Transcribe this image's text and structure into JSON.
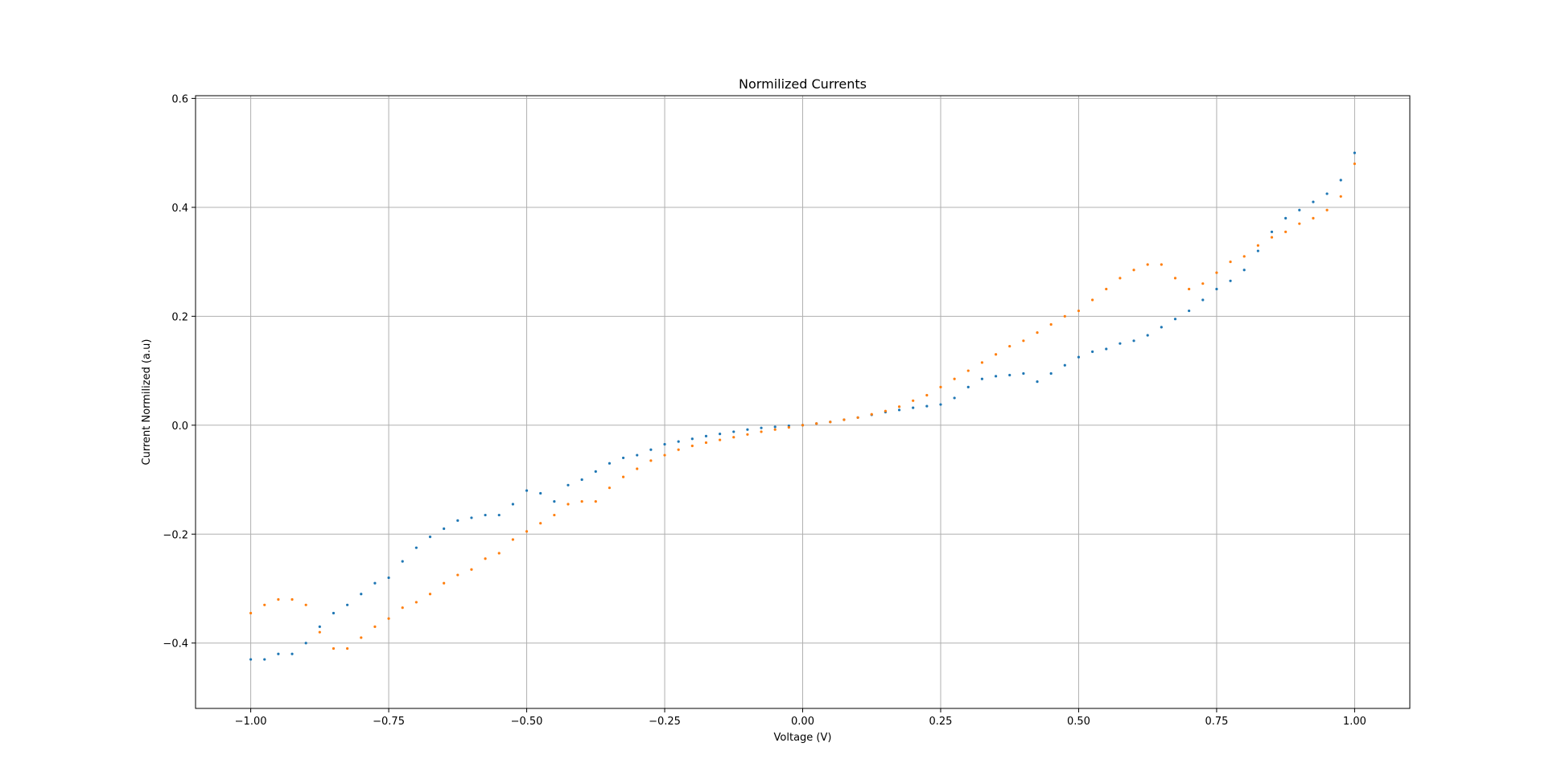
{
  "chart_data": {
    "type": "scatter",
    "title": "Normilized Currents",
    "xlabel": "Voltage (V)",
    "ylabel": "Current Normilized (a.u)",
    "xlim": [
      -1.1,
      1.1
    ],
    "ylim": [
      -0.52,
      0.605
    ],
    "grid": true,
    "x_ticks": [
      -1.0,
      -0.75,
      -0.5,
      -0.25,
      0.0,
      0.25,
      0.5,
      0.75,
      1.0
    ],
    "x_tick_labels": [
      "−1.00",
      "−0.75",
      "−0.50",
      "−0.25",
      "0.00",
      "0.25",
      "0.50",
      "0.75",
      "1.00"
    ],
    "y_ticks": [
      -0.4,
      -0.2,
      0.0,
      0.2,
      0.4,
      0.6
    ],
    "y_tick_labels": [
      "−0.4",
      "−0.2",
      "0.0",
      "0.2",
      "0.4",
      "0.6"
    ],
    "series": [
      {
        "color": "#1f77b4",
        "points": [
          [
            -1.0,
            -0.43
          ],
          [
            -0.975,
            -0.43
          ],
          [
            -0.95,
            -0.42
          ],
          [
            -0.925,
            -0.42
          ],
          [
            -0.9,
            -0.4
          ],
          [
            -0.875,
            -0.37
          ],
          [
            -0.85,
            -0.345
          ],
          [
            -0.825,
            -0.33
          ],
          [
            -0.8,
            -0.31
          ],
          [
            -0.775,
            -0.29
          ],
          [
            -0.75,
            -0.28
          ],
          [
            -0.725,
            -0.25
          ],
          [
            -0.7,
            -0.225
          ],
          [
            -0.675,
            -0.205
          ],
          [
            -0.65,
            -0.19
          ],
          [
            -0.625,
            -0.175
          ],
          [
            -0.6,
            -0.17
          ],
          [
            -0.575,
            -0.165
          ],
          [
            -0.55,
            -0.165
          ],
          [
            -0.525,
            -0.145
          ],
          [
            -0.5,
            -0.12
          ],
          [
            -0.475,
            -0.125
          ],
          [
            -0.45,
            -0.14
          ],
          [
            -0.425,
            -0.11
          ],
          [
            -0.4,
            -0.1
          ],
          [
            -0.375,
            -0.085
          ],
          [
            -0.35,
            -0.07
          ],
          [
            -0.325,
            -0.06
          ],
          [
            -0.3,
            -0.055
          ],
          [
            -0.275,
            -0.045
          ],
          [
            -0.25,
            -0.035
          ],
          [
            -0.225,
            -0.03
          ],
          [
            -0.2,
            -0.025
          ],
          [
            -0.175,
            -0.02
          ],
          [
            -0.15,
            -0.016
          ],
          [
            -0.125,
            -0.012
          ],
          [
            -0.1,
            -0.008
          ],
          [
            -0.075,
            -0.005
          ],
          [
            -0.05,
            -0.003
          ],
          [
            -0.025,
            -0.001
          ],
          [
            0.0,
            0.0
          ],
          [
            0.025,
            0.003
          ],
          [
            0.05,
            0.006
          ],
          [
            0.075,
            0.01
          ],
          [
            0.1,
            0.014
          ],
          [
            0.125,
            0.019
          ],
          [
            0.15,
            0.024
          ],
          [
            0.175,
            0.028
          ],
          [
            0.2,
            0.032
          ],
          [
            0.225,
            0.035
          ],
          [
            0.25,
            0.038
          ],
          [
            0.275,
            0.05
          ],
          [
            0.3,
            0.07
          ],
          [
            0.325,
            0.085
          ],
          [
            0.35,
            0.09
          ],
          [
            0.375,
            0.092
          ],
          [
            0.4,
            0.095
          ],
          [
            0.425,
            0.08
          ],
          [
            0.45,
            0.095
          ],
          [
            0.475,
            0.11
          ],
          [
            0.5,
            0.125
          ],
          [
            0.525,
            0.135
          ],
          [
            0.55,
            0.14
          ],
          [
            0.575,
            0.15
          ],
          [
            0.6,
            0.155
          ],
          [
            0.625,
            0.165
          ],
          [
            0.65,
            0.18
          ],
          [
            0.675,
            0.195
          ],
          [
            0.7,
            0.21
          ],
          [
            0.725,
            0.23
          ],
          [
            0.75,
            0.25
          ],
          [
            0.775,
            0.265
          ],
          [
            0.8,
            0.285
          ],
          [
            0.825,
            0.32
          ],
          [
            0.85,
            0.355
          ],
          [
            0.875,
            0.38
          ],
          [
            0.9,
            0.395
          ],
          [
            0.925,
            0.41
          ],
          [
            0.95,
            0.425
          ],
          [
            0.975,
            0.45
          ],
          [
            1.0,
            0.5
          ]
        ]
      },
      {
        "color": "#ff7f0e",
        "points": [
          [
            -1.0,
            -0.345
          ],
          [
            -0.975,
            -0.33
          ],
          [
            -0.95,
            -0.32
          ],
          [
            -0.925,
            -0.32
          ],
          [
            -0.9,
            -0.33
          ],
          [
            -0.875,
            -0.38
          ],
          [
            -0.85,
            -0.41
          ],
          [
            -0.825,
            -0.41
          ],
          [
            -0.8,
            -0.39
          ],
          [
            -0.775,
            -0.37
          ],
          [
            -0.75,
            -0.355
          ],
          [
            -0.725,
            -0.335
          ],
          [
            -0.7,
            -0.325
          ],
          [
            -0.675,
            -0.31
          ],
          [
            -0.65,
            -0.29
          ],
          [
            -0.625,
            -0.275
          ],
          [
            -0.6,
            -0.265
          ],
          [
            -0.575,
            -0.245
          ],
          [
            -0.55,
            -0.235
          ],
          [
            -0.525,
            -0.21
          ],
          [
            -0.5,
            -0.195
          ],
          [
            -0.475,
            -0.18
          ],
          [
            -0.45,
            -0.165
          ],
          [
            -0.425,
            -0.145
          ],
          [
            -0.4,
            -0.14
          ],
          [
            -0.375,
            -0.14
          ],
          [
            -0.35,
            -0.115
          ],
          [
            -0.325,
            -0.095
          ],
          [
            -0.3,
            -0.08
          ],
          [
            -0.275,
            -0.065
          ],
          [
            -0.25,
            -0.055
          ],
          [
            -0.225,
            -0.045
          ],
          [
            -0.2,
            -0.038
          ],
          [
            -0.175,
            -0.032
          ],
          [
            -0.15,
            -0.027
          ],
          [
            -0.125,
            -0.022
          ],
          [
            -0.1,
            -0.017
          ],
          [
            -0.075,
            -0.012
          ],
          [
            -0.05,
            -0.008
          ],
          [
            -0.025,
            -0.004
          ],
          [
            0.0,
            0.0
          ],
          [
            0.025,
            0.003
          ],
          [
            0.05,
            0.006
          ],
          [
            0.075,
            0.01
          ],
          [
            0.1,
            0.014
          ],
          [
            0.125,
            0.02
          ],
          [
            0.15,
            0.026
          ],
          [
            0.175,
            0.034
          ],
          [
            0.2,
            0.045
          ],
          [
            0.225,
            0.055
          ],
          [
            0.25,
            0.07
          ],
          [
            0.275,
            0.085
          ],
          [
            0.3,
            0.1
          ],
          [
            0.325,
            0.115
          ],
          [
            0.35,
            0.13
          ],
          [
            0.375,
            0.145
          ],
          [
            0.4,
            0.155
          ],
          [
            0.425,
            0.17
          ],
          [
            0.45,
            0.185
          ],
          [
            0.475,
            0.2
          ],
          [
            0.5,
            0.21
          ],
          [
            0.525,
            0.23
          ],
          [
            0.55,
            0.25
          ],
          [
            0.575,
            0.27
          ],
          [
            0.6,
            0.285
          ],
          [
            0.625,
            0.295
          ],
          [
            0.65,
            0.295
          ],
          [
            0.675,
            0.27
          ],
          [
            0.7,
            0.25
          ],
          [
            0.725,
            0.26
          ],
          [
            0.75,
            0.28
          ],
          [
            0.775,
            0.3
          ],
          [
            0.8,
            0.31
          ],
          [
            0.825,
            0.33
          ],
          [
            0.85,
            0.345
          ],
          [
            0.875,
            0.355
          ],
          [
            0.9,
            0.37
          ],
          [
            0.925,
            0.38
          ],
          [
            0.95,
            0.395
          ],
          [
            0.975,
            0.42
          ],
          [
            1.0,
            0.48
          ]
        ]
      }
    ]
  }
}
